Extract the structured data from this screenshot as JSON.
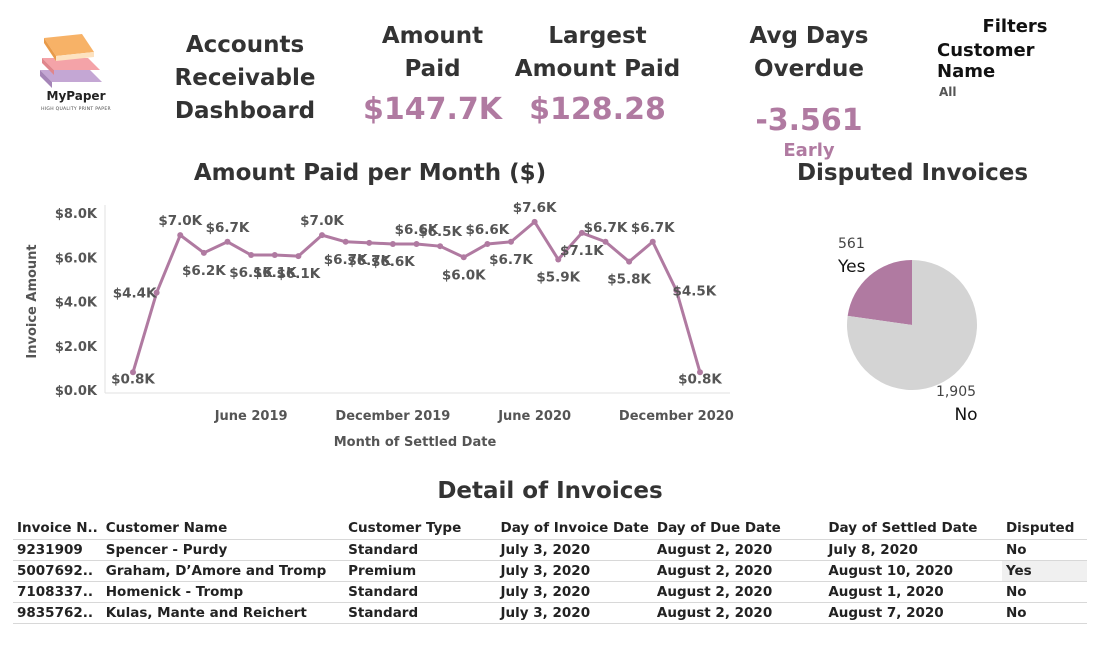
{
  "colors": {
    "accent": "#b07aa1",
    "pie_no": "#d4d4d4",
    "text": "#333333"
  },
  "logo": {
    "brand": "MyPaper",
    "tagline": "HIGH QUALITY PRINT PAPER",
    "icon": "books-stack-icon"
  },
  "dashboard_title": {
    "line1": "Accounts",
    "line2": "Receivable",
    "line3": "Dashboard"
  },
  "kpis": {
    "amount_paid": {
      "title1": "Amount",
      "title2": "Paid",
      "value": "$147.7K"
    },
    "largest_amount_paid": {
      "title1": "Largest",
      "title2": "Amount Paid",
      "value": "$128.28"
    },
    "avg_days_overdue": {
      "title": "Avg Days Overdue",
      "value": "-3.561",
      "sub": "Early"
    }
  },
  "filters": {
    "title": "Filters",
    "field_label": "Customer Name",
    "field_value": "All"
  },
  "chart_data": [
    {
      "type": "line",
      "title": "Amount Paid per Month ($)",
      "xlabel": "Month of Settled Date",
      "ylabel": "Invoice Amount",
      "x": [
        "2019-01",
        "2019-02",
        "2019-03",
        "2019-04",
        "2019-05",
        "2019-06",
        "2019-07",
        "2019-08",
        "2019-09",
        "2019-10",
        "2019-11",
        "2019-12",
        "2020-01",
        "2020-02",
        "2020-03",
        "2020-04",
        "2020-05",
        "2020-06",
        "2020-07",
        "2020-08",
        "2020-09",
        "2020-10",
        "2020-11",
        "2020-12",
        "2021-01"
      ],
      "values": [
        800,
        4400,
        7000,
        6200,
        6700,
        6100,
        6100,
        6050,
        7000,
        6700,
        6650,
        6600,
        6600,
        6500,
        6000,
        6600,
        6700,
        7600,
        5900,
        7100,
        6700,
        5800,
        6700,
        4500,
        800
      ],
      "labels": [
        "$0.8K",
        "$4.4K",
        "$7.0K",
        "$6.2K",
        "$6.7K",
        "$6.1K",
        "$6.1K",
        "$6.1K",
        "$7.0K",
        "$6.7K",
        "$6.7K",
        "$6.6K",
        "$6.6K",
        "$6.5K",
        "$6.0K",
        "$6.6K",
        "$6.7K",
        "$7.6K",
        "$5.9K",
        "$7.1K",
        "$6.7K",
        "$5.8K",
        "$6.7K",
        "$4.5K",
        "$0.8K"
      ],
      "x_ticks": [
        {
          "x": "2019-06",
          "label": "June 2019"
        },
        {
          "x": "2019-12",
          "label": "December 2019"
        },
        {
          "x": "2020-06",
          "label": "June 2020"
        },
        {
          "x": "2020-12",
          "label": "December 2020"
        }
      ],
      "y_ticks": [
        {
          "v": 0,
          "label": "$0.0K"
        },
        {
          "v": 2000,
          "label": "$2.0K"
        },
        {
          "v": 4000,
          "label": "$4.0K"
        },
        {
          "v": 6000,
          "label": "$6.0K"
        },
        {
          "v": 8000,
          "label": "$8.0K"
        }
      ],
      "ylim": [
        0,
        8000
      ],
      "grid": false
    },
    {
      "type": "pie",
      "title": "Disputed Invoices",
      "categories": [
        "Yes",
        "No"
      ],
      "values": [
        561,
        1905
      ],
      "value_labels": [
        "561",
        "1,905"
      ]
    }
  ],
  "table": {
    "title": "Detail of Invoices",
    "columns": [
      "Invoice N..",
      "Customer Name",
      "Customer Type",
      "Day of Invoice Date",
      "Day of Due Date",
      "Day of Settled Date",
      "Disputed"
    ],
    "rows": [
      [
        "9231909",
        "Spencer - Purdy",
        "Standard",
        "July 3, 2020",
        "August 2, 2020",
        "July 8, 2020",
        "No"
      ],
      [
        "5007692..",
        "Graham, D’Amore and Tromp",
        "Premium",
        "July 3, 2020",
        "August 2, 2020",
        "August 10, 2020",
        "Yes"
      ],
      [
        "7108337..",
        "Homenick - Tromp",
        "Standard",
        "July 3, 2020",
        "August 2, 2020",
        "August 1, 2020",
        "No"
      ],
      [
        "9835762..",
        "Kulas, Mante and Reichert",
        "Standard",
        "July 3, 2020",
        "August 2, 2020",
        "August 7, 2020",
        "No"
      ]
    ]
  }
}
